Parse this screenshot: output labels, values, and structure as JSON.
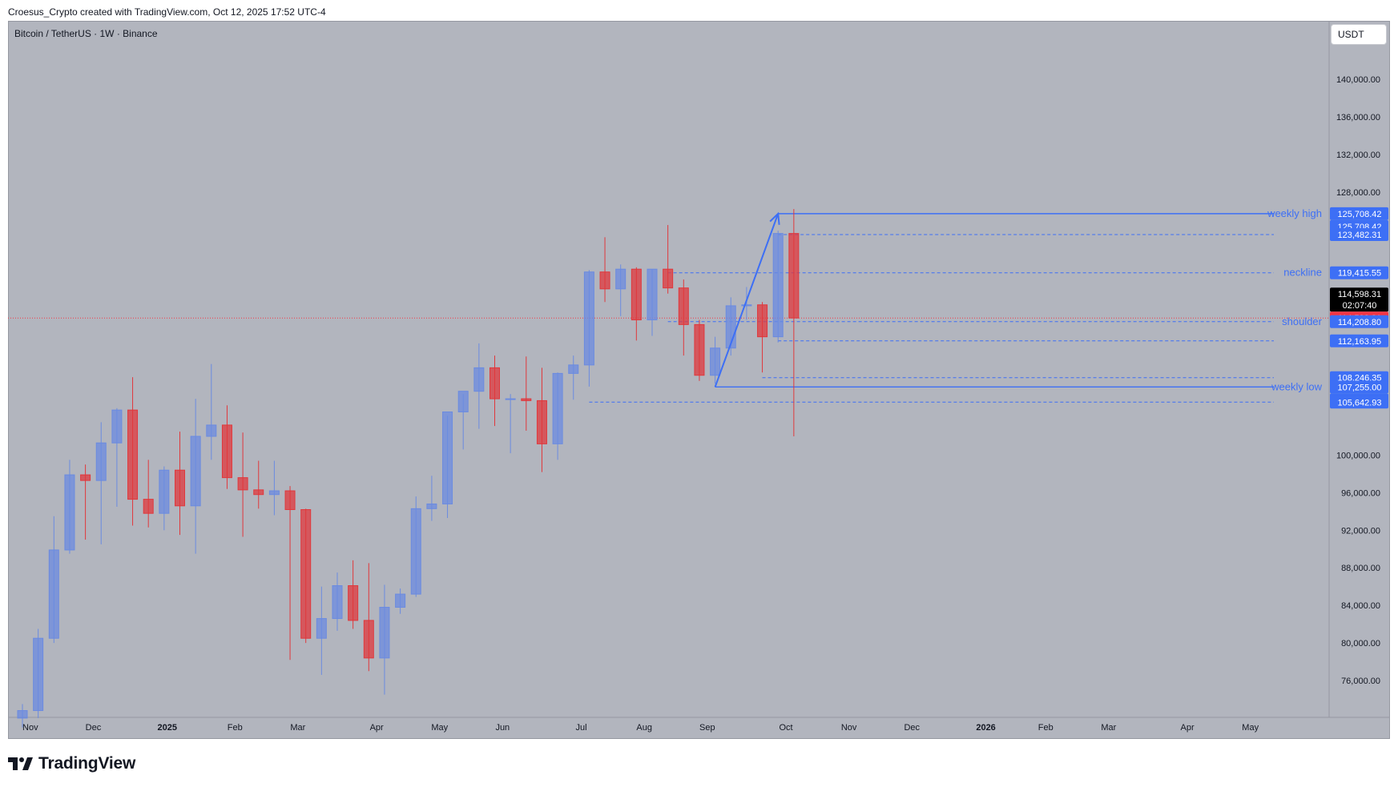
{
  "header": {
    "credit": "Croesus_Crypto created with TradingView.com, Oct 12, 2025 17:52 UTC-4"
  },
  "symbol": {
    "title": "Bitcoin / TetherUS · 1W · Binance"
  },
  "currency": {
    "label": "USDT"
  },
  "brand": {
    "name": "TradingView"
  },
  "colors": {
    "up": "#6b8be0",
    "down": "#e0383c",
    "line": "#3d6ff5",
    "background": "#b2b5be",
    "last_price": "#f23645"
  },
  "chart_data": {
    "type": "candlestick",
    "interval": "1W",
    "ylim": [
      72000,
      146000
    ],
    "y_ticks": [
      76000,
      80000,
      84000,
      88000,
      92000,
      96000,
      100000,
      128000,
      132000,
      136000,
      140000
    ],
    "y_tick_labels": [
      "76,000.00",
      "80,000.00",
      "84,000.00",
      "88,000.00",
      "92,000.00",
      "96,000.00",
      "100,000.00",
      "128,000.00",
      "132,000.00",
      "136,000.00",
      "140,000.00"
    ],
    "x_ticks": [
      {
        "label": "Nov",
        "index": 0.5
      },
      {
        "label": "Dec",
        "index": 4.5
      },
      {
        "label": "2025",
        "index": 9.2
      },
      {
        "label": "Feb",
        "index": 13.5
      },
      {
        "label": "Mar",
        "index": 17.5
      },
      {
        "label": "Apr",
        "index": 22.5
      },
      {
        "label": "May",
        "index": 26.5
      },
      {
        "label": "Jun",
        "index": 30.5
      },
      {
        "label": "Jul",
        "index": 35.5
      },
      {
        "label": "Aug",
        "index": 39.5
      },
      {
        "label": "Sep",
        "index": 43.5
      },
      {
        "label": "Oct",
        "index": 48.5
      },
      {
        "label": "Nov",
        "index": 52.5
      },
      {
        "label": "Dec",
        "index": 56.5
      },
      {
        "label": "2026",
        "index": 61.2
      },
      {
        "label": "Feb",
        "index": 65.0
      },
      {
        "label": "Mar",
        "index": 69.0
      },
      {
        "label": "Apr",
        "index": 74.0
      },
      {
        "label": "May",
        "index": 78.0
      }
    ],
    "candles": [
      {
        "o": 72000,
        "h": 73500,
        "l": 71000,
        "c": 72800
      },
      {
        "o": 72800,
        "h": 81500,
        "l": 72000,
        "c": 80500
      },
      {
        "o": 80500,
        "h": 93500,
        "l": 80000,
        "c": 89900
      },
      {
        "o": 89900,
        "h": 99500,
        "l": 89500,
        "c": 97900
      },
      {
        "o": 97900,
        "h": 99000,
        "l": 91000,
        "c": 97300
      },
      {
        "o": 97300,
        "h": 103500,
        "l": 90500,
        "c": 101300
      },
      {
        "o": 101300,
        "h": 105000,
        "l": 94500,
        "c": 104800
      },
      {
        "o": 104800,
        "h": 108300,
        "l": 92500,
        "c": 95300
      },
      {
        "o": 95300,
        "h": 99500,
        "l": 92300,
        "c": 93800
      },
      {
        "o": 93800,
        "h": 98800,
        "l": 92000,
        "c": 98400
      },
      {
        "o": 98400,
        "h": 102500,
        "l": 91500,
        "c": 94600
      },
      {
        "o": 94600,
        "h": 106000,
        "l": 89500,
        "c": 102000
      },
      {
        "o": 102000,
        "h": 109700,
        "l": 99500,
        "c": 103200
      },
      {
        "o": 103200,
        "h": 105300,
        "l": 96400,
        "c": 97600
      },
      {
        "o": 97600,
        "h": 102400,
        "l": 91300,
        "c": 96300
      },
      {
        "o": 96300,
        "h": 99400,
        "l": 94300,
        "c": 95800
      },
      {
        "o": 95800,
        "h": 99400,
        "l": 93600,
        "c": 96200
      },
      {
        "o": 96200,
        "h": 96700,
        "l": 78200,
        "c": 94200
      },
      {
        "o": 94200,
        "h": 94300,
        "l": 80000,
        "c": 80500
      },
      {
        "o": 80500,
        "h": 86000,
        "l": 76600,
        "c": 82600
      },
      {
        "o": 82600,
        "h": 87500,
        "l": 81300,
        "c": 86100
      },
      {
        "o": 86100,
        "h": 88800,
        "l": 81500,
        "c": 82400
      },
      {
        "o": 82400,
        "h": 88500,
        "l": 77000,
        "c": 78400
      },
      {
        "o": 78400,
        "h": 86200,
        "l": 74500,
        "c": 83800
      },
      {
        "o": 83800,
        "h": 85800,
        "l": 83100,
        "c": 85200
      },
      {
        "o": 85200,
        "h": 95600,
        "l": 84900,
        "c": 94300
      },
      {
        "o": 94300,
        "h": 97800,
        "l": 93000,
        "c": 94800
      },
      {
        "o": 94800,
        "h": 104200,
        "l": 93300,
        "c": 104600
      },
      {
        "o": 104600,
        "h": 106500,
        "l": 100600,
        "c": 106800
      },
      {
        "o": 106800,
        "h": 111900,
        "l": 102800,
        "c": 109300
      },
      {
        "o": 109300,
        "h": 110600,
        "l": 103100,
        "c": 106000
      },
      {
        "o": 106000,
        "h": 106500,
        "l": 100200,
        "c": 106000
      },
      {
        "o": 106000,
        "h": 110500,
        "l": 102600,
        "c": 105800
      },
      {
        "o": 105800,
        "h": 109300,
        "l": 98200,
        "c": 101200
      },
      {
        "o": 101200,
        "h": 108800,
        "l": 99500,
        "c": 108700
      },
      {
        "o": 108700,
        "h": 110600,
        "l": 105900,
        "c": 109600
      },
      {
        "o": 109600,
        "h": 119700,
        "l": 107300,
        "c": 119500
      },
      {
        "o": 119500,
        "h": 123200,
        "l": 116300,
        "c": 117700
      },
      {
        "o": 117700,
        "h": 120300,
        "l": 114800,
        "c": 119800
      },
      {
        "o": 119800,
        "h": 120000,
        "l": 112200,
        "c": 114400
      },
      {
        "o": 114400,
        "h": 119800,
        "l": 112700,
        "c": 119800
      },
      {
        "o": 119800,
        "h": 124500,
        "l": 117200,
        "c": 117800
      },
      {
        "o": 117800,
        "h": 118700,
        "l": 110600,
        "c": 113900
      },
      {
        "o": 113900,
        "h": 114400,
        "l": 107900,
        "c": 108500
      },
      {
        "o": 108500,
        "h": 112600,
        "l": 107600,
        "c": 111400
      },
      {
        "o": 111400,
        "h": 116800,
        "l": 110600,
        "c": 115900
      },
      {
        "o": 115900,
        "h": 117900,
        "l": 114400,
        "c": 116000
      },
      {
        "o": 116000,
        "h": 116300,
        "l": 108800,
        "c": 112600
      },
      {
        "o": 112600,
        "h": 123900,
        "l": 112000,
        "c": 123600
      },
      {
        "o": 123600,
        "h": 126200,
        "l": 102000,
        "c": 114600
      }
    ],
    "horizontal_lines": [
      {
        "price": 125708.42,
        "style": "solid",
        "from_index": 48,
        "text": "weekly high"
      },
      {
        "price": 123482.31,
        "style": "dashed",
        "from_index": 48
      },
      {
        "price": 119415.55,
        "style": "dashed",
        "from_index": 41,
        "text": "neckline"
      },
      {
        "price": 114208.8,
        "style": "dashed",
        "from_index": 41,
        "text": "shoulder"
      },
      {
        "price": 112163.95,
        "style": "dashed",
        "from_index": 48
      },
      {
        "price": 108246.35,
        "style": "dashed",
        "from_index": 47
      },
      {
        "price": 107255,
        "style": "solid",
        "from_index": 44,
        "text": "weekly low"
      },
      {
        "price": 105642.93,
        "style": "dashed",
        "from_index": 36
      }
    ],
    "trend_arrow": {
      "from_index": 44,
      "from_price": 107255,
      "to_index": 48,
      "to_price": 125708.42
    },
    "price_labels": [
      {
        "price": 125708.42,
        "text": "125,708.42",
        "kind": "line"
      },
      {
        "price": 125708.42,
        "text": "125,708.42",
        "kind": "line",
        "offset": 1
      },
      {
        "price": 123482.31,
        "text": "123,482.31",
        "kind": "line"
      },
      {
        "price": 119415.55,
        "text": "119,415.55",
        "kind": "line"
      },
      {
        "price": 114598.31,
        "text": "114,598.31",
        "kind": "last",
        "countdown": "02:07:40"
      },
      {
        "price": 114598.31,
        "text": "114,598.31",
        "kind": "close"
      },
      {
        "price": 114208.8,
        "text": "114,208.80",
        "kind": "line"
      },
      {
        "price": 112163.95,
        "text": "112,163.95",
        "kind": "line"
      },
      {
        "price": 108246.35,
        "text": "108,246.35",
        "kind": "line"
      },
      {
        "price": 107255,
        "text": "107,255.00",
        "kind": "line"
      },
      {
        "price": 107255,
        "text": "107,255.00",
        "kind": "line",
        "offset": 1
      },
      {
        "price": 105642.93,
        "text": "105,642.93",
        "kind": "line"
      }
    ],
    "last_price": 114598.31
  }
}
